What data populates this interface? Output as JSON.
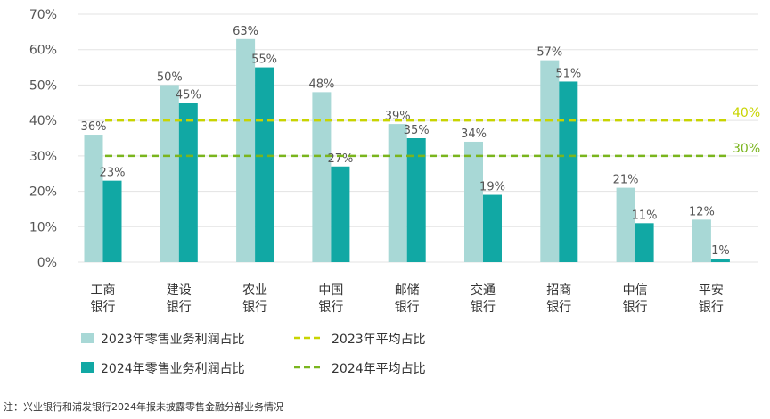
{
  "chart_data": {
    "type": "bar",
    "categories": [
      [
        "工商",
        "银行"
      ],
      [
        "建设",
        "银行"
      ],
      [
        "农业",
        "银行"
      ],
      [
        "中国",
        "银行"
      ],
      [
        "邮储",
        "银行"
      ],
      [
        "交通",
        "银行"
      ],
      [
        "招商",
        "银行"
      ],
      [
        "中信",
        "银行"
      ],
      [
        "平安",
        "银行"
      ]
    ],
    "series": [
      {
        "name": "2023年零售业务利润占比",
        "values": [
          36,
          50,
          63,
          48,
          39,
          34,
          57,
          21,
          12
        ],
        "labels": [
          "36%",
          "50%",
          "63%",
          "48%",
          "39%",
          "34%",
          "57%",
          "21%",
          "12%"
        ]
      },
      {
        "name": "2024年零售业务利润占比",
        "values": [
          23,
          45,
          55,
          27,
          35,
          19,
          51,
          11,
          1
        ],
        "labels": [
          "23%",
          "45%",
          "55%",
          "27%",
          "35%",
          "19%",
          "51%",
          "11%",
          "1%"
        ]
      }
    ],
    "averages": [
      {
        "name": "2023年平均占比",
        "value": 40,
        "label": "40%"
      },
      {
        "name": "2024年平均占比",
        "value": 30,
        "label": "30%"
      }
    ],
    "yticks": [
      "0%",
      "10%",
      "20%",
      "30%",
      "40%",
      "50%",
      "60%",
      "70%"
    ],
    "ylim": [
      0,
      70
    ],
    "grid": true,
    "legend_position": "bottom-left"
  },
  "colors": {
    "series_2023": "#a8d8d6",
    "series_2024": "#11a8a4",
    "avg_2023": "#c8d400",
    "avg_2024": "#7ab51d",
    "grid": "#e3e3e3"
  },
  "note": "注：兴业银行和浦发银行2024年报未披露零售金融分部业务情况"
}
